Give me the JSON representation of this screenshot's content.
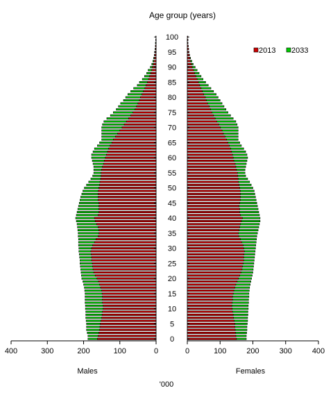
{
  "chart_data": {
    "type": "bar",
    "subtype": "population-pyramid",
    "title": "Age group (years)",
    "xlabel": "'000",
    "left_panel_label": "Males",
    "right_panel_label": "Females",
    "xlim": [
      0,
      400
    ],
    "x_ticks": [
      0,
      100,
      200,
      300,
      400
    ],
    "y_ticks": [
      0,
      5,
      10,
      15,
      20,
      25,
      30,
      35,
      40,
      45,
      50,
      55,
      60,
      65,
      70,
      75,
      80,
      85,
      90,
      95,
      100
    ],
    "legend_position": "top-right",
    "categories": [
      0,
      1,
      2,
      3,
      4,
      5,
      6,
      7,
      8,
      9,
      10,
      11,
      12,
      13,
      14,
      15,
      16,
      17,
      18,
      19,
      20,
      21,
      22,
      23,
      24,
      25,
      26,
      27,
      28,
      29,
      30,
      31,
      32,
      33,
      34,
      35,
      36,
      37,
      38,
      39,
      40,
      41,
      42,
      43,
      44,
      45,
      46,
      47,
      48,
      49,
      50,
      51,
      52,
      53,
      54,
      55,
      56,
      57,
      58,
      59,
      60,
      61,
      62,
      63,
      64,
      65,
      66,
      67,
      68,
      69,
      70,
      71,
      72,
      73,
      74,
      75,
      76,
      77,
      78,
      79,
      80,
      81,
      82,
      83,
      84,
      85,
      86,
      87,
      88,
      89,
      90,
      91,
      92,
      93,
      94,
      95,
      96,
      97,
      98,
      99,
      100
    ],
    "series": [
      {
        "name": "2013",
        "color": "#cc0000",
        "males": [
          162,
          160,
          158,
          156,
          155,
          154,
          152,
          150,
          149,
          148,
          146,
          146,
          148,
          148,
          148,
          149,
          150,
          153,
          156,
          159,
          163,
          168,
          172,
          174,
          175,
          176,
          178,
          178,
          179,
          180,
          178,
          175,
          170,
          166,
          160,
          158,
          158,
          160,
          164,
          168,
          170,
          160,
          158,
          158,
          158,
          158,
          160,
          160,
          160,
          160,
          158,
          156,
          155,
          153,
          152,
          152,
          150,
          148,
          145,
          143,
          140,
          137,
          134,
          131,
          127,
          122,
          118,
          112,
          106,
          100,
          94,
          88,
          82,
          76,
          70,
          64,
          58,
          54,
          50,
          46,
          43,
          39,
          35,
          31,
          28,
          24,
          21,
          18,
          15,
          12,
          10,
          8,
          6,
          5,
          4,
          3,
          2,
          2,
          1,
          1,
          1
        ],
        "females": [
          150,
          148,
          147,
          146,
          145,
          145,
          143,
          141,
          140,
          138,
          137,
          136,
          137,
          138,
          138,
          140,
          142,
          145,
          148,
          152,
          156,
          160,
          164,
          167,
          168,
          170,
          172,
          172,
          173,
          174,
          172,
          170,
          166,
          162,
          157,
          156,
          158,
          160,
          162,
          165,
          168,
          162,
          160,
          160,
          158,
          160,
          162,
          162,
          162,
          162,
          160,
          158,
          156,
          155,
          154,
          153,
          150,
          148,
          146,
          142,
          140,
          138,
          135,
          132,
          128,
          124,
          120,
          115,
          110,
          106,
          101,
          96,
          90,
          85,
          80,
          75,
          71,
          67,
          62,
          58,
          55,
          50,
          46,
          42,
          38,
          34,
          30,
          26,
          22,
          19,
          15,
          13,
          10,
          8,
          6,
          5,
          4,
          3,
          2,
          2,
          2
        ]
      },
      {
        "name": "2033",
        "color": "#00cc00",
        "males": [
          188,
          188,
          190,
          192,
          192,
          192,
          193,
          194,
          194,
          194,
          195,
          195,
          196,
          196,
          196,
          196,
          197,
          198,
          200,
          202,
          205,
          206,
          207,
          208,
          209,
          210,
          210,
          211,
          212,
          213,
          213,
          214,
          214,
          214,
          215,
          215,
          216,
          217,
          218,
          220,
          222,
          220,
          218,
          216,
          214,
          212,
          210,
          208,
          205,
          202,
          198,
          192,
          186,
          180,
          175,
          172,
          172,
          172,
          174,
          176,
          178,
          178,
          174,
          170,
          162,
          156,
          150,
          150,
          150,
          150,
          150,
          148,
          144,
          136,
          126,
          118,
          110,
          104,
          98,
          90,
          84,
          78,
          70,
          62,
          52,
          46,
          38,
          32,
          26,
          22,
          16,
          12,
          9,
          7,
          5,
          4,
          3,
          2,
          2,
          1,
          1
        ],
        "females": [
          180,
          180,
          181,
          182,
          182,
          183,
          184,
          184,
          185,
          185,
          186,
          186,
          187,
          187,
          188,
          188,
          189,
          190,
          192,
          194,
          196,
          198,
          200,
          201,
          202,
          203,
          204,
          205,
          206,
          207,
          208,
          209,
          210,
          211,
          212,
          214,
          216,
          218,
          220,
          222,
          222,
          220,
          218,
          216,
          214,
          212,
          210,
          208,
          206,
          204,
          200,
          195,
          190,
          184,
          178,
          176,
          176,
          178,
          180,
          182,
          184,
          182,
          178,
          172,
          165,
          160,
          155,
          155,
          155,
          155,
          155,
          152,
          148,
          140,
          132,
          124,
          118,
          112,
          106,
          100,
          94,
          88,
          80,
          72,
          64,
          56,
          48,
          42,
          36,
          30,
          24,
          18,
          14,
          10,
          7,
          5,
          4,
          3,
          2,
          2,
          1
        ]
      }
    ]
  }
}
